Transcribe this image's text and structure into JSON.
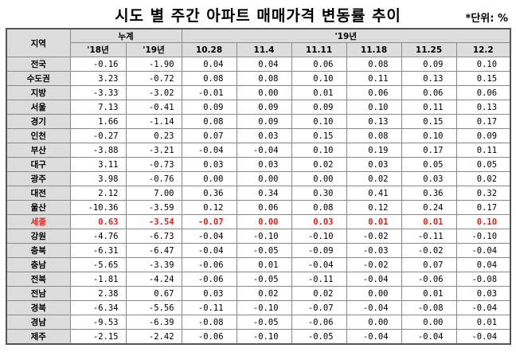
{
  "title": "시도 별 주간 아파트 매매가격 변동률 추이",
  "unit": "*단위: %",
  "header": {
    "region": "지역",
    "cumulative": "누계",
    "year19": "'19년",
    "cols": [
      "'18년",
      "'19년",
      "10.28",
      "11.4",
      "11.11",
      "11.18",
      "11.25",
      "12.2"
    ]
  },
  "rows": [
    {
      "region": "전국",
      "values": [
        "-0.16",
        "-1.90",
        "0.04",
        "0.04",
        "0.06",
        "0.08",
        "0.09",
        "0.10"
      ]
    },
    {
      "region": "수도권",
      "values": [
        "3.23",
        "-0.72",
        "0.08",
        "0.08",
        "0.10",
        "0.11",
        "0.13",
        "0.15"
      ]
    },
    {
      "region": "지방",
      "values": [
        "-3.33",
        "-3.02",
        "-0.01",
        "0.00",
        "0.01",
        "0.06",
        "0.06",
        "0.06"
      ]
    },
    {
      "region": "서울",
      "values": [
        "7.13",
        "-0.41",
        "0.09",
        "0.09",
        "0.09",
        "0.10",
        "0.11",
        "0.13"
      ]
    },
    {
      "region": "경기",
      "values": [
        "1.66",
        "-1.14",
        "0.08",
        "0.09",
        "0.10",
        "0.13",
        "0.15",
        "0.17"
      ]
    },
    {
      "region": "인천",
      "values": [
        "-0.27",
        "0.23",
        "0.07",
        "0.03",
        "0.15",
        "0.08",
        "0.10",
        "0.09"
      ]
    },
    {
      "region": "부산",
      "values": [
        "-3.88",
        "-3.21",
        "-0.04",
        "-0.04",
        "0.10",
        "0.19",
        "0.17",
        "0.11"
      ]
    },
    {
      "region": "대구",
      "values": [
        "3.11",
        "-0.73",
        "0.03",
        "0.03",
        "0.02",
        "0.03",
        "0.05",
        "0.05"
      ]
    },
    {
      "region": "광주",
      "values": [
        "3.98",
        "-0.76",
        "0.00",
        "0.00",
        "0.00",
        "0.02",
        "0.03",
        "0.02"
      ]
    },
    {
      "region": "대전",
      "values": [
        "2.12",
        "7.00",
        "0.36",
        "0.34",
        "0.30",
        "0.41",
        "0.36",
        "0.32"
      ]
    },
    {
      "region": "울산",
      "values": [
        "-10.36",
        "-3.59",
        "0.12",
        "0.06",
        "0.08",
        "0.12",
        "0.24",
        "0.17"
      ]
    },
    {
      "region": "세종",
      "values": [
        "0.63",
        "-3.54",
        "-0.07",
        "0.00",
        "0.03",
        "0.01",
        "0.01",
        "0.10"
      ]
    },
    {
      "region": "강원",
      "values": [
        "-4.76",
        "-6.73",
        "-0.04",
        "-0.10",
        "-0.10",
        "-0.02",
        "-0.11",
        "-0.10"
      ]
    },
    {
      "region": "충북",
      "values": [
        "-6.31",
        "-6.47",
        "-0.04",
        "-0.05",
        "-0.09",
        "-0.03",
        "-0.02",
        "-0.04"
      ]
    },
    {
      "region": "충남",
      "values": [
        "-5.65",
        "-3.39",
        "-0.06",
        "0.01",
        "-0.04",
        "-0.02",
        "0.07",
        "0.04"
      ]
    },
    {
      "region": "전북",
      "values": [
        "-1.81",
        "-4.24",
        "-0.06",
        "-0.05",
        "-0.11",
        "-0.04",
        "-0.06",
        "-0.08"
      ]
    },
    {
      "region": "전남",
      "values": [
        "2.38",
        "0.67",
        "0.03",
        "0.02",
        "0.02",
        "0.00",
        "0.01",
        "0.03"
      ]
    },
    {
      "region": "경북",
      "values": [
        "-6.34",
        "-5.56",
        "-0.11",
        "-0.10",
        "-0.07",
        "-0.04",
        "-0.08",
        "-0.04"
      ]
    },
    {
      "region": "경남",
      "values": [
        "-9.53",
        "-6.39",
        "-0.08",
        "-0.05",
        "-0.06",
        "0.00",
        "0.00",
        "0.01"
      ]
    },
    {
      "region": "제주",
      "values": [
        "-2.15",
        "-2.42",
        "-0.06",
        "-0.10",
        "-0.05",
        "-0.04",
        "-0.04",
        "-0.04"
      ]
    }
  ],
  "highlight_region": "세종",
  "colors": {
    "highlight": "#e0201b",
    "header_bg": "#dddddd"
  }
}
